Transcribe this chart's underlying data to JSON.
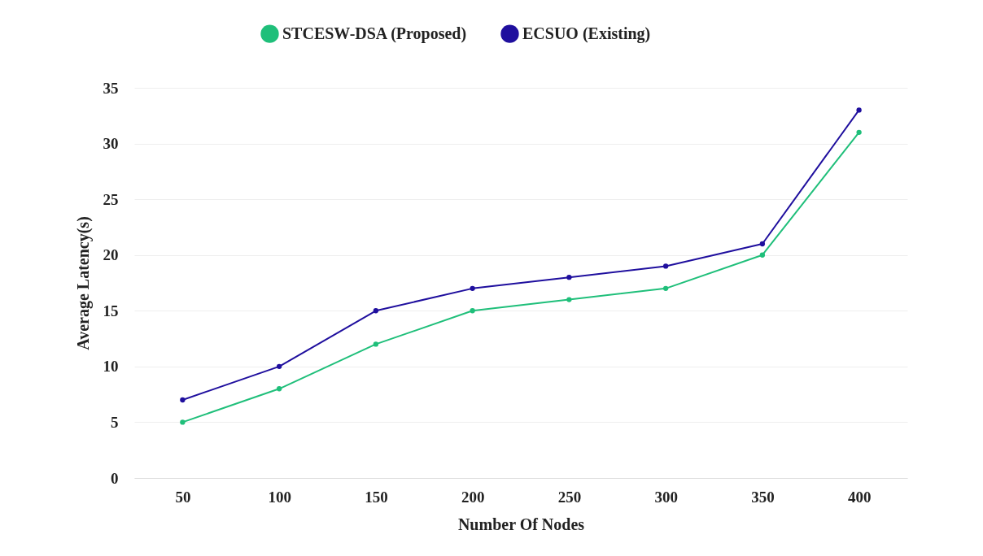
{
  "chart_data": {
    "type": "line",
    "xlabel": "Number Of Nodes",
    "ylabel": "Average Latency(s)",
    "categories": [
      "50",
      "100",
      "150",
      "200",
      "250",
      "300",
      "350",
      "400"
    ],
    "series": [
      {
        "name": "STCESW-DSA (Proposed)",
        "color": "#1fbf7a",
        "values": [
          5,
          8,
          12,
          15,
          16,
          17,
          20,
          31
        ]
      },
      {
        "name": "ECSUO (Existing)",
        "color": "#1f0f9e",
        "values": [
          7,
          10,
          15,
          17,
          18,
          19,
          21,
          33
        ]
      }
    ],
    "ylim": [
      0,
      35
    ],
    "yticks": [
      0,
      5,
      10,
      15,
      20,
      25,
      30,
      35
    ],
    "grid": "y",
    "legend": "top",
    "marker": "circle",
    "line_style": "solid"
  }
}
